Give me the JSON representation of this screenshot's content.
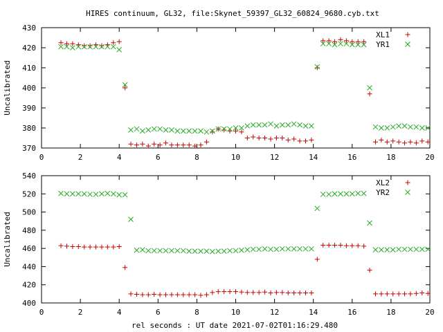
{
  "title": "HIRES continuum, GL32, file:Skynet_59397_GL32_60824_9680.cyb.txt",
  "xlabel": "rel seconds : UT date 2021-07-02T01:16:29.480",
  "colors": {
    "series_a": "#cc0000",
    "series_b": "#22aa22",
    "axis": "#000000"
  },
  "chart_data": [
    {
      "type": "scatter",
      "ylabel": "Uncalibrated",
      "xlim": [
        0,
        20
      ],
      "ylim": [
        370,
        430
      ],
      "xticks": [
        0,
        2,
        4,
        6,
        8,
        10,
        12,
        14,
        16,
        18,
        20
      ],
      "yticks": [
        370,
        380,
        390,
        400,
        410,
        420,
        430
      ],
      "legend_position": "top-right",
      "series": [
        {
          "name": "XL1",
          "marker": "plus",
          "x": [
            1.0,
            1.3,
            1.6,
            1.9,
            2.2,
            2.5,
            2.8,
            3.1,
            3.4,
            3.7,
            4.0,
            4.3,
            4.6,
            4.9,
            5.2,
            5.5,
            5.8,
            6.1,
            6.4,
            6.7,
            7.0,
            7.3,
            7.6,
            7.9,
            8.2,
            8.5,
            8.8,
            9.1,
            9.4,
            9.7,
            10.0,
            10.3,
            10.6,
            10.9,
            11.2,
            11.5,
            11.8,
            12.1,
            12.4,
            12.7,
            13.0,
            13.3,
            13.6,
            13.9,
            14.2,
            14.5,
            14.8,
            15.1,
            15.4,
            15.7,
            16.0,
            16.3,
            16.6,
            16.9,
            17.2,
            17.5,
            17.8,
            18.1,
            18.4,
            18.7,
            19.0,
            19.3,
            19.6,
            19.9
          ],
          "y": [
            422.5,
            422,
            422,
            421.5,
            421,
            421,
            421.5,
            421,
            421.5,
            422.5,
            423,
            400,
            372,
            371.5,
            372,
            371,
            372,
            371.5,
            372.5,
            371.5,
            371.5,
            371.5,
            371.5,
            371,
            371.5,
            373,
            378,
            379.5,
            379,
            378.5,
            378.5,
            378,
            375,
            375.5,
            375,
            375,
            374.5,
            375,
            375,
            374,
            374.5,
            373.5,
            373.5,
            374,
            410,
            423.5,
            423.5,
            423,
            424,
            423.5,
            423,
            423,
            423,
            397,
            373,
            374,
            373,
            373.5,
            373,
            372.5,
            373,
            372.5,
            373.5,
            373
          ]
        },
        {
          "name": "YR1",
          "marker": "cross",
          "x": [
            1.0,
            1.3,
            1.6,
            1.9,
            2.2,
            2.5,
            2.8,
            3.1,
            3.4,
            3.7,
            4.0,
            4.3,
            4.6,
            4.9,
            5.2,
            5.5,
            5.8,
            6.1,
            6.4,
            6.7,
            7.0,
            7.3,
            7.6,
            7.9,
            8.2,
            8.5,
            8.8,
            9.1,
            9.4,
            9.7,
            10.0,
            10.3,
            10.6,
            10.9,
            11.2,
            11.5,
            11.8,
            12.1,
            12.4,
            12.7,
            13.0,
            13.3,
            13.6,
            13.9,
            14.2,
            14.5,
            14.8,
            15.1,
            15.4,
            15.7,
            16.0,
            16.3,
            16.6,
            16.9,
            17.2,
            17.5,
            17.8,
            18.1,
            18.4,
            18.7,
            19.0,
            19.3,
            19.6,
            19.9
          ],
          "y": [
            420.5,
            420.5,
            420,
            420.5,
            420.5,
            420.5,
            420.5,
            420.5,
            420.5,
            420.5,
            419,
            401.5,
            379,
            379.5,
            378.5,
            379,
            379.5,
            379.5,
            379,
            379,
            378.5,
            378.5,
            378.5,
            378.5,
            378.5,
            378,
            378.5,
            379.5,
            379.5,
            379.5,
            380,
            380,
            381,
            381.5,
            381.5,
            381.5,
            382,
            381,
            381.5,
            381.5,
            382,
            381.5,
            381,
            381,
            410.5,
            422,
            422,
            421.5,
            422,
            422,
            421.5,
            421.5,
            421.5,
            400,
            380.5,
            380,
            380,
            380.5,
            381,
            381,
            380.5,
            380.5,
            380,
            380
          ]
        }
      ]
    },
    {
      "type": "scatter",
      "ylabel": "Uncalibrated",
      "xlim": [
        0,
        20
      ],
      "ylim": [
        400,
        540
      ],
      "xticks": [
        0,
        2,
        4,
        6,
        8,
        10,
        12,
        14,
        16,
        18,
        20
      ],
      "yticks": [
        400,
        420,
        440,
        460,
        480,
        500,
        520,
        540
      ],
      "legend_position": "top-right",
      "series": [
        {
          "name": "XL2",
          "marker": "plus",
          "x": [
            1.0,
            1.3,
            1.6,
            1.9,
            2.2,
            2.5,
            2.8,
            3.1,
            3.4,
            3.7,
            4.0,
            4.3,
            4.6,
            4.9,
            5.2,
            5.5,
            5.8,
            6.1,
            6.4,
            6.7,
            7.0,
            7.3,
            7.6,
            7.9,
            8.2,
            8.5,
            8.8,
            9.1,
            9.4,
            9.7,
            10.0,
            10.3,
            10.6,
            10.9,
            11.2,
            11.5,
            11.8,
            12.1,
            12.4,
            12.7,
            13.0,
            13.3,
            13.6,
            13.9,
            14.2,
            14.5,
            14.8,
            15.1,
            15.4,
            15.7,
            16.0,
            16.3,
            16.6,
            16.9,
            17.2,
            17.5,
            17.8,
            18.1,
            18.4,
            18.7,
            19.0,
            19.3,
            19.6,
            19.9
          ],
          "y": [
            463,
            462.5,
            462,
            462,
            461.5,
            461.5,
            461.5,
            461.5,
            461.5,
            461.5,
            462,
            439,
            410,
            409.5,
            409,
            409,
            409.5,
            409,
            409,
            409,
            409,
            409,
            409,
            409,
            408.5,
            409,
            411.5,
            412.5,
            412.5,
            412.5,
            412.5,
            412,
            411.5,
            411.5,
            411.5,
            412,
            411,
            411.5,
            411.5,
            411,
            411,
            411,
            411,
            411,
            448,
            463.5,
            463.5,
            463.5,
            463.5,
            463,
            463,
            463,
            462.5,
            436,
            410,
            410,
            410,
            410,
            410,
            410,
            410,
            410.5,
            411,
            410.5
          ]
        },
        {
          "name": "YR2",
          "marker": "cross",
          "x": [
            1.0,
            1.3,
            1.6,
            1.9,
            2.2,
            2.5,
            2.8,
            3.1,
            3.4,
            3.7,
            4.0,
            4.3,
            4.6,
            4.9,
            5.2,
            5.5,
            5.8,
            6.1,
            6.4,
            6.7,
            7.0,
            7.3,
            7.6,
            7.9,
            8.2,
            8.5,
            8.8,
            9.1,
            9.4,
            9.7,
            10.0,
            10.3,
            10.6,
            10.9,
            11.2,
            11.5,
            11.8,
            12.1,
            12.4,
            12.7,
            13.0,
            13.3,
            13.6,
            13.9,
            14.2,
            14.5,
            14.8,
            15.1,
            15.4,
            15.7,
            16.0,
            16.3,
            16.6,
            16.9,
            17.2,
            17.5,
            17.8,
            18.1,
            18.4,
            18.7,
            19.0,
            19.3,
            19.6,
            19.9
          ],
          "y": [
            520.5,
            520,
            520,
            520,
            520,
            519.5,
            519.5,
            520,
            520.5,
            520,
            519,
            519,
            492,
            458,
            458.5,
            457.5,
            457.5,
            457.5,
            457.5,
            457.5,
            457.5,
            457.5,
            457,
            457,
            457,
            457,
            456.5,
            457,
            457,
            457.5,
            457.5,
            458,
            458.5,
            459,
            459,
            459.5,
            459,
            459,
            459.5,
            459.5,
            459.5,
            459.5,
            459.5,
            459.5,
            504,
            519.5,
            519.5,
            520,
            520,
            520,
            520,
            520.5,
            520.5,
            488,
            458.5,
            458.5,
            458.5,
            458.5,
            459,
            459,
            459,
            459,
            459,
            459
          ]
        }
      ]
    }
  ]
}
